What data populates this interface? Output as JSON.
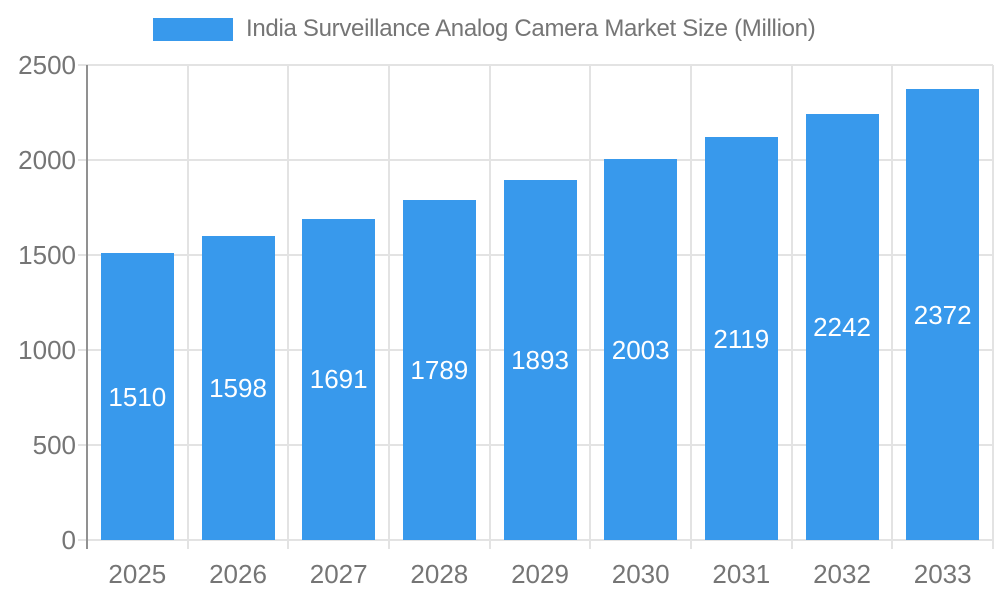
{
  "legend": {
    "label": "India Surveillance Analog Camera Market Size (Million)"
  },
  "chart_data": {
    "type": "bar",
    "title": "India Surveillance Analog Camera Market Size (Million)",
    "categories": [
      "2025",
      "2026",
      "2027",
      "2028",
      "2029",
      "2030",
      "2031",
      "2032",
      "2033"
    ],
    "values": [
      1510,
      1598,
      1691,
      1789,
      1893,
      2003,
      2119,
      2242,
      2372
    ],
    "value_labels": [
      "1510",
      "1598",
      "1691",
      "1789",
      "1893",
      "2003",
      "2119",
      "2242",
      "2372"
    ],
    "xlabel": "",
    "ylabel": "",
    "ylim": [
      0,
      2500
    ],
    "yticks": [
      0,
      500,
      1000,
      1500,
      2000,
      2500
    ],
    "ytick_labels": [
      "0",
      "500",
      "1000",
      "1500",
      "2000",
      "2500"
    ],
    "grid": true,
    "legend_position": "top-center",
    "bar_color": "#3899ec",
    "bar_value_text_color": "#ffffff",
    "axis_text_color": "#757575",
    "gridline_color": "#e3e3e3",
    "axis_line_color": "#919191"
  }
}
